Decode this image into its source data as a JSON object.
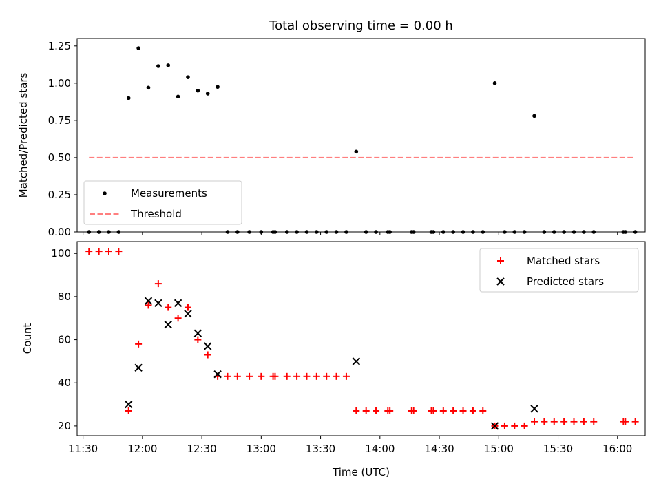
{
  "chart_data": [
    {
      "type": "scatter",
      "title": "Total observing time = 0.00 h",
      "xlabel": "",
      "ylabel": "Matched/Predicted stars",
      "xlim": [
        "11:27",
        "16:14"
      ],
      "ylim": [
        0,
        1.3
      ],
      "yticks": [
        0.0,
        0.25,
        0.5,
        0.75,
        1.0,
        1.25
      ],
      "ytick_labels": [
        "0.00",
        "0.25",
        "0.50",
        "0.75",
        "1.00",
        "1.25"
      ],
      "grid": false,
      "legend": "lower-left",
      "series": [
        {
          "name": "Measurements",
          "marker": "dot",
          "color": "#000000",
          "points": [
            [
              "11:33",
              0
            ],
            [
              "11:38",
              0
            ],
            [
              "11:43",
              0
            ],
            [
              "11:48",
              0
            ],
            [
              "11:53",
              0.9
            ],
            [
              "11:58",
              1.235
            ],
            [
              "12:03",
              0.97
            ],
            [
              "12:08",
              1.115
            ],
            [
              "12:13",
              1.12
            ],
            [
              "12:18",
              0.91
            ],
            [
              "12:23",
              1.04
            ],
            [
              "12:28",
              0.95
            ],
            [
              "12:33",
              0.93
            ],
            [
              "12:38",
              0.975
            ],
            [
              "12:43",
              0
            ],
            [
              "12:48",
              0
            ],
            [
              "12:54",
              0
            ],
            [
              "13:00",
              0
            ],
            [
              "13:06",
              0
            ],
            [
              "13:07",
              0
            ],
            [
              "13:13",
              0
            ],
            [
              "13:18",
              0
            ],
            [
              "13:23",
              0
            ],
            [
              "13:28",
              0
            ],
            [
              "13:33",
              0
            ],
            [
              "13:38",
              0
            ],
            [
              "13:43",
              0
            ],
            [
              "13:48",
              0.54
            ],
            [
              "13:53",
              0
            ],
            [
              "13:58",
              0
            ],
            [
              "14:04",
              0
            ],
            [
              "14:05",
              0
            ],
            [
              "14:16",
              0
            ],
            [
              "14:17",
              0
            ],
            [
              "14:26",
              0
            ],
            [
              "14:27",
              0
            ],
            [
              "14:32",
              0
            ],
            [
              "14:37",
              0
            ],
            [
              "14:42",
              0
            ],
            [
              "14:47",
              0
            ],
            [
              "14:52",
              0
            ],
            [
              "14:58",
              1.0
            ],
            [
              "15:03",
              0
            ],
            [
              "15:08",
              0
            ],
            [
              "15:13",
              0
            ],
            [
              "15:18",
              0.78
            ],
            [
              "15:23",
              0
            ],
            [
              "15:28",
              0
            ],
            [
              "15:33",
              0
            ],
            [
              "15:38",
              0
            ],
            [
              "15:43",
              0
            ],
            [
              "15:48",
              0
            ],
            [
              "16:03",
              0
            ],
            [
              "16:04",
              0
            ],
            [
              "16:09",
              0
            ]
          ]
        },
        {
          "name": "Threshold",
          "marker": "dashed-line",
          "color": "#ff7f7f",
          "points": [
            [
              "11:33",
              0.5
            ],
            [
              "16:09",
              0.5
            ]
          ]
        }
      ]
    },
    {
      "type": "scatter",
      "title": "",
      "xlabel": "Time (UTC)",
      "ylabel": "Count",
      "xlim": [
        "11:27",
        "16:14"
      ],
      "ylim": [
        15.5,
        105.5
      ],
      "yticks": [
        20,
        40,
        60,
        80,
        100
      ],
      "ytick_labels": [
        "20",
        "40",
        "60",
        "80",
        "100"
      ],
      "xticks": [
        "11:30",
        "12:00",
        "12:30",
        "13:00",
        "13:30",
        "14:00",
        "14:30",
        "15:00",
        "15:30",
        "16:00"
      ],
      "grid": false,
      "legend": "upper-right",
      "series": [
        {
          "name": "Matched stars",
          "marker": "plus",
          "color": "#ff0000",
          "points": [
            [
              "11:33",
              101
            ],
            [
              "11:38",
              101
            ],
            [
              "11:43",
              101
            ],
            [
              "11:48",
              101
            ],
            [
              "11:53",
              27
            ],
            [
              "11:58",
              58
            ],
            [
              "12:03",
              76
            ],
            [
              "12:08",
              86
            ],
            [
              "12:13",
              75
            ],
            [
              "12:18",
              70
            ],
            [
              "12:23",
              75
            ],
            [
              "12:28",
              60
            ],
            [
              "12:33",
              53
            ],
            [
              "12:38",
              43
            ],
            [
              "12:43",
              43
            ],
            [
              "12:48",
              43
            ],
            [
              "12:54",
              43
            ],
            [
              "13:00",
              43
            ],
            [
              "13:06",
              43
            ],
            [
              "13:07",
              43
            ],
            [
              "13:13",
              43
            ],
            [
              "13:18",
              43
            ],
            [
              "13:23",
              43
            ],
            [
              "13:28",
              43
            ],
            [
              "13:33",
              43
            ],
            [
              "13:38",
              43
            ],
            [
              "13:43",
              43
            ],
            [
              "13:48",
              27
            ],
            [
              "13:53",
              27
            ],
            [
              "13:58",
              27
            ],
            [
              "14:04",
              27
            ],
            [
              "14:05",
              27
            ],
            [
              "14:16",
              27
            ],
            [
              "14:17",
              27
            ],
            [
              "14:26",
              27
            ],
            [
              "14:27",
              27
            ],
            [
              "14:32",
              27
            ],
            [
              "14:37",
              27
            ],
            [
              "14:42",
              27
            ],
            [
              "14:47",
              27
            ],
            [
              "14:52",
              27
            ],
            [
              "14:58",
              20
            ],
            [
              "15:03",
              20
            ],
            [
              "15:08",
              20
            ],
            [
              "15:13",
              20
            ],
            [
              "15:18",
              22
            ],
            [
              "15:23",
              22
            ],
            [
              "15:28",
              22
            ],
            [
              "15:33",
              22
            ],
            [
              "15:38",
              22
            ],
            [
              "15:43",
              22
            ],
            [
              "15:48",
              22
            ],
            [
              "16:03",
              22
            ],
            [
              "16:04",
              22
            ],
            [
              "16:09",
              22
            ]
          ]
        },
        {
          "name": "Predicted stars",
          "marker": "x",
          "color": "#000000",
          "points": [
            [
              "11:53",
              30
            ],
            [
              "11:58",
              47
            ],
            [
              "12:03",
              78
            ],
            [
              "12:08",
              77
            ],
            [
              "12:13",
              67
            ],
            [
              "12:18",
              77
            ],
            [
              "12:23",
              72
            ],
            [
              "12:28",
              63
            ],
            [
              "12:33",
              57
            ],
            [
              "12:38",
              44
            ],
            [
              "13:48",
              50
            ],
            [
              "14:58",
              20
            ],
            [
              "15:18",
              28
            ]
          ]
        }
      ]
    }
  ]
}
